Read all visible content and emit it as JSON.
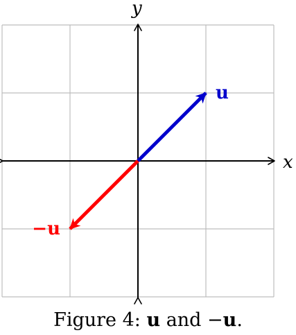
{
  "axes": {
    "x_label": "x",
    "y_label": "y",
    "xlim": [
      -2,
      2
    ],
    "ylim": [
      -2,
      2
    ],
    "grid": true,
    "grid_step": 1
  },
  "vectors": [
    {
      "label": "u",
      "from": [
        0,
        0
      ],
      "to": [
        1,
        1
      ],
      "color": "#0000cc"
    },
    {
      "label": "−u",
      "from": [
        0,
        0
      ],
      "to": [
        -1,
        -1
      ],
      "color": "#ff0000"
    }
  ],
  "colors": {
    "grid": "#bdbdbd",
    "axis": "#000000"
  },
  "caption": {
    "prefix": "Figure 4: ",
    "u1": "u",
    "middle": " and −",
    "u2": "u",
    "suffix": "."
  }
}
